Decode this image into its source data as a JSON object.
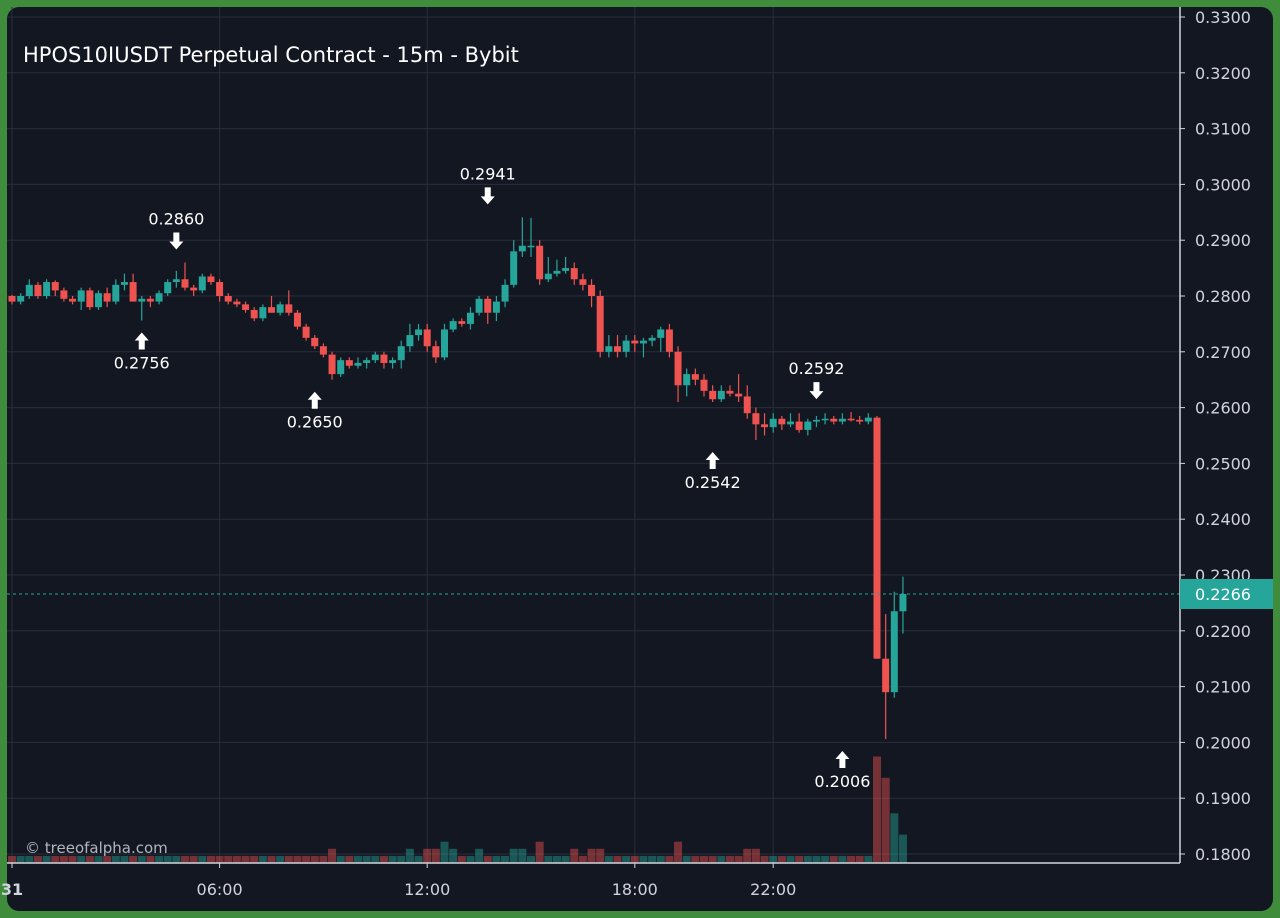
{
  "title": "HPOS10IUSDT Perpetual Contract - 15m - Bybit",
  "watermark": "© treeofalpha.com",
  "colors": {
    "up": "#26a69a",
    "down": "#ef5350",
    "bg": "#131722",
    "grid": "#2a2e39",
    "text": "#d1d4dc"
  },
  "chart_data": {
    "type": "candlestick",
    "interval": "15m",
    "x_ticks": [
      {
        "i": 0,
        "label": "31",
        "bold": true
      },
      {
        "i": 24,
        "label": "06:00"
      },
      {
        "i": 48,
        "label": "12:00"
      },
      {
        "i": 72,
        "label": "18:00"
      },
      {
        "i": 88,
        "label": "22:00"
      }
    ],
    "y_ticks": [
      "0.1800",
      "0.1900",
      "0.2000",
      "0.2100",
      "0.2200",
      "0.2300",
      "0.2400",
      "0.2500",
      "0.2600",
      "0.2700",
      "0.2800",
      "0.2900",
      "0.3000",
      "0.3100",
      "0.3200",
      "0.3300"
    ],
    "ylim": [
      0.1785,
      0.332
    ],
    "current_price": {
      "value": 0.2266,
      "label": "0.2266"
    },
    "annotations": [
      {
        "i": 15,
        "price": 0.2756,
        "label": "0.2756",
        "type": "low"
      },
      {
        "i": 19,
        "price": 0.286,
        "label": "0.2860",
        "type": "high"
      },
      {
        "i": 35,
        "price": 0.265,
        "label": "0.2650",
        "type": "low"
      },
      {
        "i": 55,
        "price": 0.2941,
        "label": "0.2941",
        "type": "high"
      },
      {
        "i": 81,
        "price": 0.2542,
        "label": "0.2542",
        "type": "low"
      },
      {
        "i": 93,
        "price": 0.2592,
        "label": "0.2592",
        "type": "high"
      },
      {
        "i": 96,
        "price": 0.2006,
        "label": "0.2006",
        "type": "low"
      }
    ],
    "candles": [
      [
        0.28,
        0.2802,
        0.2785,
        0.279,
        1
      ],
      [
        0.279,
        0.2805,
        0.2785,
        0.28,
        1
      ],
      [
        0.28,
        0.283,
        0.2795,
        0.282,
        1
      ],
      [
        0.282,
        0.2825,
        0.2795,
        0.28,
        1
      ],
      [
        0.28,
        0.283,
        0.2795,
        0.2825,
        1
      ],
      [
        0.2825,
        0.2828,
        0.28,
        0.281,
        1
      ],
      [
        0.281,
        0.2815,
        0.279,
        0.2795,
        1
      ],
      [
        0.2795,
        0.28,
        0.2785,
        0.279,
        1
      ],
      [
        0.279,
        0.2815,
        0.2775,
        0.281,
        1
      ],
      [
        0.281,
        0.2815,
        0.2775,
        0.278,
        1
      ],
      [
        0.278,
        0.281,
        0.2775,
        0.2805,
        1
      ],
      [
        0.2805,
        0.2815,
        0.278,
        0.279,
        1
      ],
      [
        0.279,
        0.283,
        0.2785,
        0.282,
        1
      ],
      [
        0.282,
        0.284,
        0.281,
        0.2825,
        1
      ],
      [
        0.2825,
        0.284,
        0.28,
        0.279,
        1
      ],
      [
        0.279,
        0.28,
        0.2756,
        0.2795,
        1
      ],
      [
        0.2795,
        0.28,
        0.278,
        0.279,
        1
      ],
      [
        0.279,
        0.281,
        0.2785,
        0.2805,
        1
      ],
      [
        0.2805,
        0.283,
        0.28,
        0.2825,
        1
      ],
      [
        0.2825,
        0.2845,
        0.2815,
        0.283,
        1
      ],
      [
        0.283,
        0.286,
        0.281,
        0.2815,
        1
      ],
      [
        0.2815,
        0.282,
        0.28,
        0.281,
        1
      ],
      [
        0.281,
        0.284,
        0.2805,
        0.2835,
        1
      ],
      [
        0.2835,
        0.284,
        0.282,
        0.2825,
        1
      ],
      [
        0.2825,
        0.283,
        0.279,
        0.28,
        1
      ],
      [
        0.28,
        0.2805,
        0.2785,
        0.279,
        1
      ],
      [
        0.279,
        0.2795,
        0.278,
        0.2785,
        1
      ],
      [
        0.2785,
        0.279,
        0.277,
        0.2775,
        1
      ],
      [
        0.2775,
        0.278,
        0.2755,
        0.276,
        1
      ],
      [
        0.276,
        0.2785,
        0.2755,
        0.278,
        1
      ],
      [
        0.278,
        0.28,
        0.277,
        0.277,
        1
      ],
      [
        0.277,
        0.279,
        0.2765,
        0.2785,
        1
      ],
      [
        0.2785,
        0.281,
        0.2765,
        0.277,
        1
      ],
      [
        0.277,
        0.2775,
        0.274,
        0.2745,
        1
      ],
      [
        0.2745,
        0.275,
        0.272,
        0.2725,
        1
      ],
      [
        0.2725,
        0.273,
        0.2705,
        0.271,
        1
      ],
      [
        0.271,
        0.2715,
        0.269,
        0.2695,
        1
      ],
      [
        0.2695,
        0.27,
        0.265,
        0.266,
        2
      ],
      [
        0.266,
        0.269,
        0.2655,
        0.2685,
        1
      ],
      [
        0.2685,
        0.269,
        0.267,
        0.2675,
        1
      ],
      [
        0.2675,
        0.269,
        0.267,
        0.268,
        1
      ],
      [
        0.268,
        0.269,
        0.267,
        0.2685,
        1
      ],
      [
        0.2685,
        0.27,
        0.268,
        0.2695,
        1
      ],
      [
        0.2695,
        0.27,
        0.267,
        0.268,
        1
      ],
      [
        0.268,
        0.269,
        0.267,
        0.2685,
        1
      ],
      [
        0.2685,
        0.272,
        0.267,
        0.271,
        1
      ],
      [
        0.271,
        0.275,
        0.27,
        0.273,
        2
      ],
      [
        0.273,
        0.275,
        0.272,
        0.274,
        1
      ],
      [
        0.274,
        0.275,
        0.27,
        0.271,
        2
      ],
      [
        0.271,
        0.272,
        0.268,
        0.269,
        2
      ],
      [
        0.269,
        0.275,
        0.2685,
        0.274,
        3
      ],
      [
        0.274,
        0.276,
        0.2735,
        0.2755,
        2
      ],
      [
        0.2755,
        0.276,
        0.2745,
        0.275,
        1
      ],
      [
        0.275,
        0.278,
        0.274,
        0.277,
        1
      ],
      [
        0.277,
        0.28,
        0.2765,
        0.2795,
        2
      ],
      [
        0.2795,
        0.28,
        0.275,
        0.277,
        1
      ],
      [
        0.277,
        0.28,
        0.2755,
        0.279,
        1
      ],
      [
        0.279,
        0.283,
        0.278,
        0.282,
        1
      ],
      [
        0.282,
        0.29,
        0.2815,
        0.288,
        2
      ],
      [
        0.288,
        0.2941,
        0.287,
        0.289,
        2
      ],
      [
        0.289,
        0.294,
        0.287,
        0.289,
        1
      ],
      [
        0.289,
        0.29,
        0.282,
        0.283,
        3
      ],
      [
        0.283,
        0.287,
        0.2825,
        0.284,
        1
      ],
      [
        0.284,
        0.2865,
        0.2835,
        0.2845,
        1
      ],
      [
        0.2845,
        0.287,
        0.284,
        0.285,
        1
      ],
      [
        0.285,
        0.286,
        0.282,
        0.283,
        2
      ],
      [
        0.283,
        0.284,
        0.281,
        0.282,
        1
      ],
      [
        0.282,
        0.283,
        0.278,
        0.28,
        2
      ],
      [
        0.28,
        0.281,
        0.269,
        0.27,
        2
      ],
      [
        0.27,
        0.273,
        0.269,
        0.271,
        1
      ],
      [
        0.271,
        0.273,
        0.269,
        0.27,
        1
      ],
      [
        0.27,
        0.273,
        0.269,
        0.272,
        1
      ],
      [
        0.272,
        0.273,
        0.27,
        0.2715,
        1
      ],
      [
        0.2715,
        0.2725,
        0.269,
        0.272,
        1
      ],
      [
        0.272,
        0.273,
        0.271,
        0.2725,
        1
      ],
      [
        0.2725,
        0.2745,
        0.27,
        0.274,
        1
      ],
      [
        0.274,
        0.275,
        0.269,
        0.27,
        1
      ],
      [
        0.27,
        0.271,
        0.261,
        0.264,
        3
      ],
      [
        0.264,
        0.267,
        0.262,
        0.266,
        1
      ],
      [
        0.266,
        0.267,
        0.264,
        0.265,
        1
      ],
      [
        0.265,
        0.266,
        0.262,
        0.263,
        1
      ],
      [
        0.263,
        0.264,
        0.261,
        0.2615,
        1
      ],
      [
        0.2615,
        0.264,
        0.261,
        0.263,
        1
      ],
      [
        0.263,
        0.264,
        0.262,
        0.2625,
        1
      ],
      [
        0.2625,
        0.266,
        0.261,
        0.262,
        1
      ],
      [
        0.262,
        0.264,
        0.258,
        0.259,
        2
      ],
      [
        0.259,
        0.26,
        0.2542,
        0.257,
        2
      ],
      [
        0.257,
        0.259,
        0.255,
        0.2565,
        1
      ],
      [
        0.2565,
        0.259,
        0.2555,
        0.258,
        1
      ],
      [
        0.258,
        0.2585,
        0.256,
        0.257,
        1
      ],
      [
        0.257,
        0.259,
        0.2565,
        0.2575,
        1
      ],
      [
        0.2575,
        0.259,
        0.2555,
        0.256,
        1
      ],
      [
        0.256,
        0.258,
        0.255,
        0.2575,
        1
      ],
      [
        0.2575,
        0.2585,
        0.2565,
        0.2578,
        1
      ],
      [
        0.2578,
        0.259,
        0.257,
        0.258,
        1
      ],
      [
        0.258,
        0.2585,
        0.257,
        0.2575,
        1
      ],
      [
        0.2575,
        0.259,
        0.257,
        0.258,
        1
      ],
      [
        0.258,
        0.2592,
        0.2575,
        0.2578,
        1
      ],
      [
        0.2578,
        0.2585,
        0.257,
        0.2575,
        1
      ],
      [
        0.2575,
        0.259,
        0.257,
        0.2582,
        1
      ],
      [
        0.2582,
        0.2585,
        0.215,
        0.215,
        15
      ],
      [
        0.215,
        0.223,
        0.2006,
        0.209,
        12
      ],
      [
        0.209,
        0.227,
        0.208,
        0.2235,
        7
      ],
      [
        0.2235,
        0.2297,
        0.2195,
        0.2266,
        4
      ]
    ],
    "volume_colors_by_candle_direction": true
  }
}
